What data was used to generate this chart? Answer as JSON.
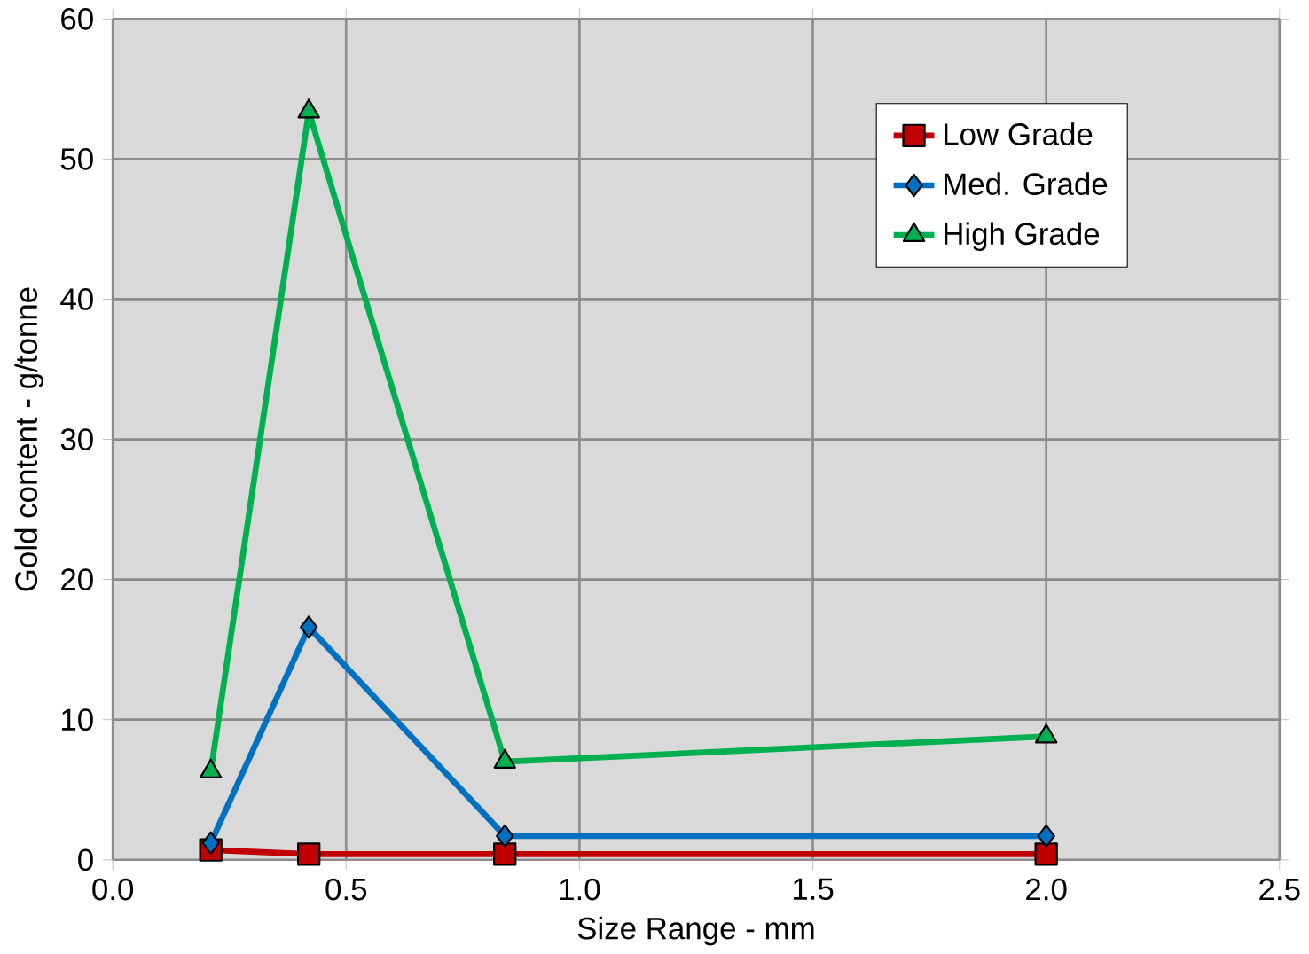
{
  "chart_data": {
    "type": "line",
    "xlabel": "Size Range - mm",
    "ylabel": "Gold content - g/tonne",
    "x": [
      0.21,
      0.42,
      0.84,
      2.0
    ],
    "series": [
      {
        "name": "Low Grade",
        "color": "#c00000",
        "marker": "square",
        "values": [
          0.7,
          0.4,
          0.4,
          0.4
        ]
      },
      {
        "name": "Med. Grade",
        "color": "#0070c0",
        "marker": "diamond",
        "values": [
          1.2,
          16.6,
          1.7,
          1.7
        ]
      },
      {
        "name": "High Grade",
        "color": "#00b050",
        "marker": "triangle",
        "values": [
          6.3,
          53.4,
          7.0,
          8.8
        ]
      }
    ],
    "xlim": [
      0,
      2.5
    ],
    "xticks": [
      {
        "value": 0,
        "label": "0.0"
      },
      {
        "value": 0.5,
        "label": "0.5"
      },
      {
        "value": 1,
        "label": "1.0"
      },
      {
        "value": 1.5,
        "label": "1.5"
      },
      {
        "value": 2,
        "label": "2.0"
      },
      {
        "value": 2.5,
        "label": "2.5"
      }
    ],
    "ylim": [
      0,
      60
    ],
    "yticks": [
      0,
      10,
      20,
      30,
      40,
      50,
      60
    ],
    "grid": true,
    "legend": "top right",
    "line_style": "solid"
  }
}
